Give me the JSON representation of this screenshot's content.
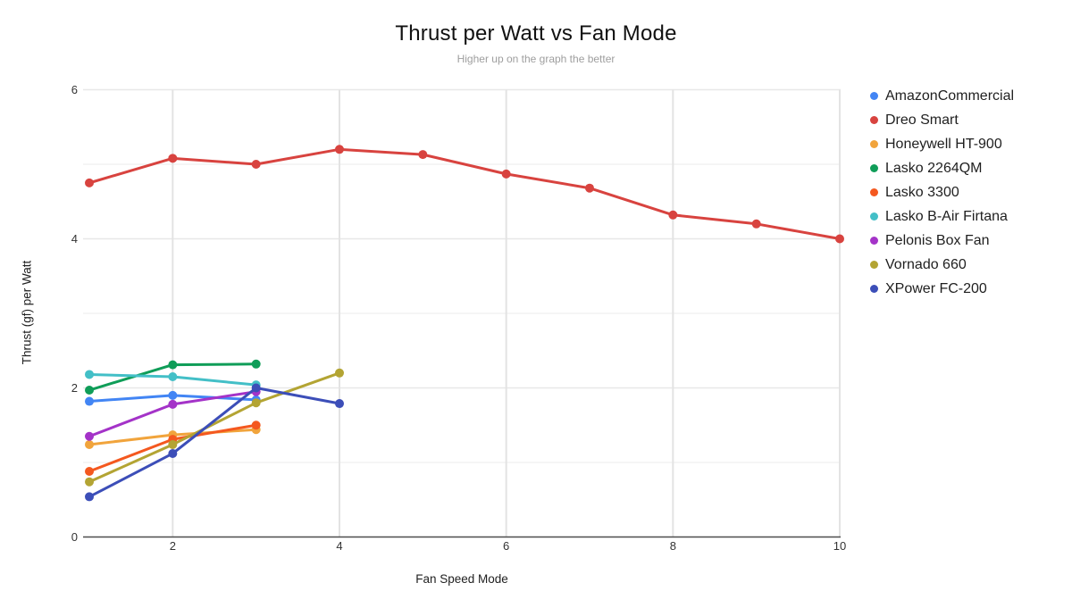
{
  "chart_data": {
    "type": "line",
    "title": "Thrust per Watt vs Fan Mode",
    "subtitle": "Higher up on the graph the better",
    "xlabel": "Fan Speed Mode",
    "ylabel": "Thrust (gf) per Watt",
    "x_axis": {
      "min": 1,
      "max": 10,
      "ticks": [
        2,
        4,
        6,
        8,
        10
      ]
    },
    "y_axis": {
      "min": 0,
      "max": 6,
      "ticks": [
        0,
        2,
        4,
        6
      ],
      "minor_gridlines": [
        1,
        3,
        5
      ]
    },
    "grid": true,
    "legend_position": "right",
    "marker": "circle",
    "series": [
      {
        "name": "AmazonCommercial",
        "color": "#4285F4",
        "x": [
          1,
          2,
          3
        ],
        "values": [
          1.82,
          1.9,
          1.84
        ]
      },
      {
        "name": "Dreo Smart",
        "color": "#D8433F",
        "x": [
          1,
          2,
          3,
          4,
          5,
          6,
          7,
          8,
          9,
          10
        ],
        "values": [
          4.75,
          5.08,
          5.0,
          5.2,
          5.13,
          4.87,
          4.68,
          4.32,
          4.2,
          4.0
        ]
      },
      {
        "name": "Honeywell HT-900",
        "color": "#F1A43C",
        "x": [
          1,
          2,
          3
        ],
        "values": [
          1.24,
          1.37,
          1.44
        ]
      },
      {
        "name": "Lasko 2264QM",
        "color": "#0F9D58",
        "x": [
          1,
          2,
          3
        ],
        "values": [
          1.97,
          2.31,
          2.32
        ]
      },
      {
        "name": "Lasko 3300",
        "color": "#F4581F",
        "x": [
          1,
          2,
          3
        ],
        "values": [
          0.88,
          1.31,
          1.5
        ]
      },
      {
        "name": "Lasko B-Air Firtana",
        "color": "#43BFC7",
        "x": [
          1,
          2,
          3
        ],
        "values": [
          2.18,
          2.15,
          2.04
        ]
      },
      {
        "name": "Pelonis Box Fan",
        "color": "#A433C8",
        "x": [
          1,
          2,
          3
        ],
        "values": [
          1.35,
          1.78,
          1.95
        ]
      },
      {
        "name": "Vornado 660",
        "color": "#B3A433",
        "x": [
          1,
          2,
          3,
          4
        ],
        "values": [
          0.74,
          1.24,
          1.8,
          2.2
        ]
      },
      {
        "name": "XPower FC-200",
        "color": "#3C4EB8",
        "x": [
          1,
          2,
          3,
          4
        ],
        "values": [
          0.54,
          1.12,
          2.0,
          1.79
        ]
      }
    ]
  }
}
